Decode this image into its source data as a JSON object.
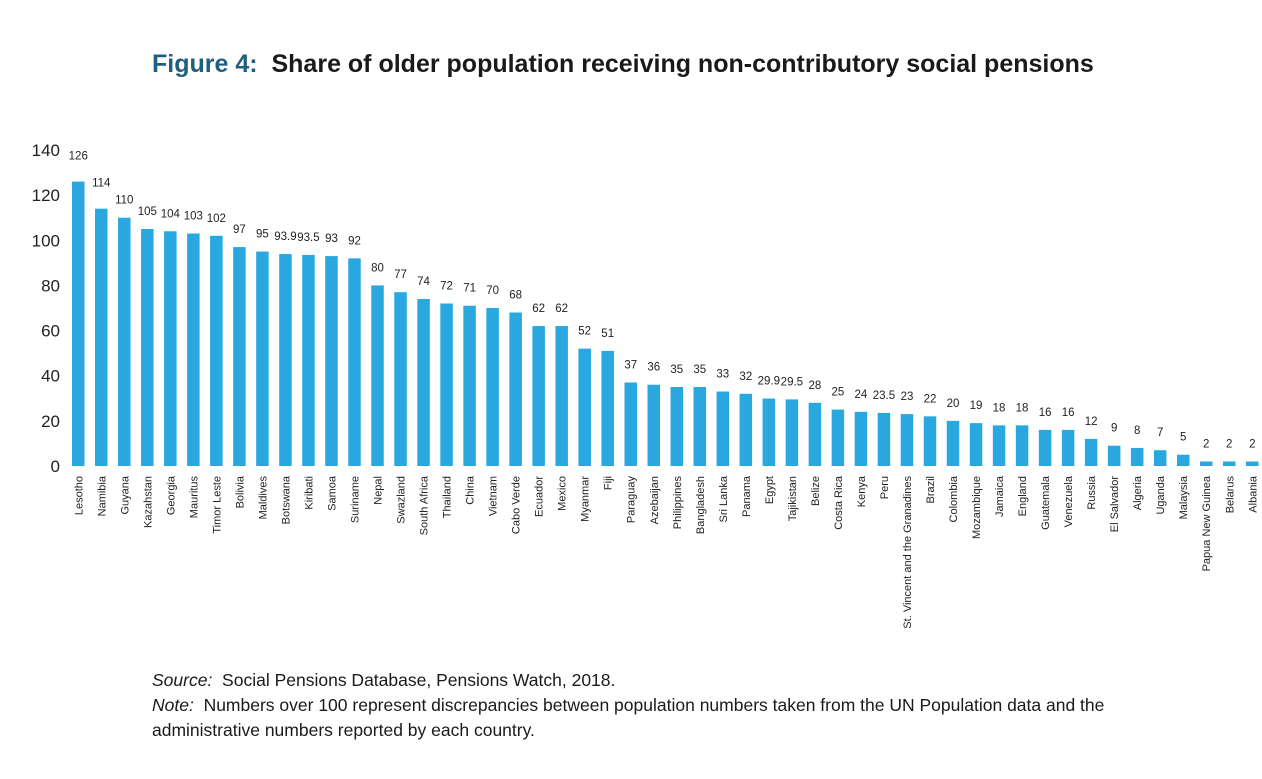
{
  "figure": {
    "label": "Figure 4:",
    "title": "Share of older population receiving non-contributory social pensions"
  },
  "notes": {
    "source_key": "Source:",
    "source_text": "Social Pensions Database, Pensions Watch, 2018.",
    "note_key": "Note:",
    "note_text": "Numbers over 100 represent discrepancies between population numbers taken from the UN Population data and the administrative numbers reported by each country."
  },
  "chart_data": {
    "type": "bar",
    "title": "Share of older population receiving non-contributory social pensions",
    "xlabel": "",
    "ylabel": "",
    "ylim": [
      0,
      140
    ],
    "yticks": [
      0,
      20,
      40,
      60,
      80,
      100,
      120,
      140
    ],
    "grid": false,
    "bar_color": "#29a8e0",
    "categories": [
      "Lesotho",
      "Namibia",
      "Guyana",
      "Kazahstan",
      "Georgia",
      "Mauritus",
      "Timor Leste",
      "Bolivia",
      "Maldives",
      "Botswana",
      "Kiribati",
      "Samoa",
      "Suriname",
      "Nepal",
      "Swazland",
      "South Africa",
      "Thailand",
      "China",
      "Vietnam",
      "Cabo Verde",
      "Ecuador",
      "Mexico",
      "Myanmar",
      "Fiji",
      "Paraguay",
      "Azebaijan",
      "Philippines",
      "Bangladesh",
      "Sri Lanka",
      "Panama",
      "Egypt",
      "Tajikistan",
      "Belize",
      "Costa Rica",
      "Kenya",
      "Peru",
      "St. Vincent and the Granadines",
      "Brazil",
      "Colombia",
      "Mozambique",
      "Jamaica",
      "England",
      "Guatemala",
      "Venezuela",
      "Russia",
      "El Salvador",
      "Algeria",
      "Uganda",
      "Malaysia",
      "Papua New Guinea",
      "Belarus",
      "Albania"
    ],
    "values": [
      126,
      114,
      110,
      105,
      104,
      103,
      102,
      97,
      95,
      93.9,
      93.5,
      93,
      92,
      80,
      77,
      74,
      72,
      71,
      70,
      68,
      62,
      62,
      52,
      51,
      37,
      36,
      35,
      35,
      33,
      32,
      29.9,
      29.5,
      28,
      25,
      24,
      23.5,
      23,
      22,
      20,
      19,
      18,
      18,
      16,
      16,
      12,
      9,
      8,
      7,
      5,
      2,
      2,
      2
    ],
    "value_labels": [
      "126",
      "114",
      "110",
      "105",
      "104",
      "103",
      "102",
      "97",
      "95",
      "93.9",
      "93.5",
      "93",
      "92",
      "80",
      "77",
      "74",
      "72",
      "71",
      "70",
      "68",
      "62",
      "62",
      "52",
      "51",
      "37",
      "36",
      "35",
      "35",
      "33",
      "32",
      "29.9",
      "29.5",
      "28",
      "25",
      "24",
      "23.5",
      "23",
      "22",
      "20",
      "19",
      "18",
      "18",
      "16",
      "16",
      "12",
      "9",
      "8",
      "7",
      "5",
      "2",
      "2",
      "2"
    ],
    "label_offsets": [
      22,
      22,
      14,
      14,
      14,
      14,
      14,
      14,
      14,
      14,
      14,
      14,
      14,
      14,
      14,
      14,
      14,
      14,
      14,
      14,
      14,
      14,
      14,
      14,
      14,
      14,
      14,
      14,
      14,
      14,
      14,
      14,
      14,
      14,
      14,
      14,
      14,
      14,
      14,
      14,
      14,
      14,
      14,
      14,
      14,
      14,
      14,
      14,
      14,
      14,
      14,
      14
    ]
  }
}
